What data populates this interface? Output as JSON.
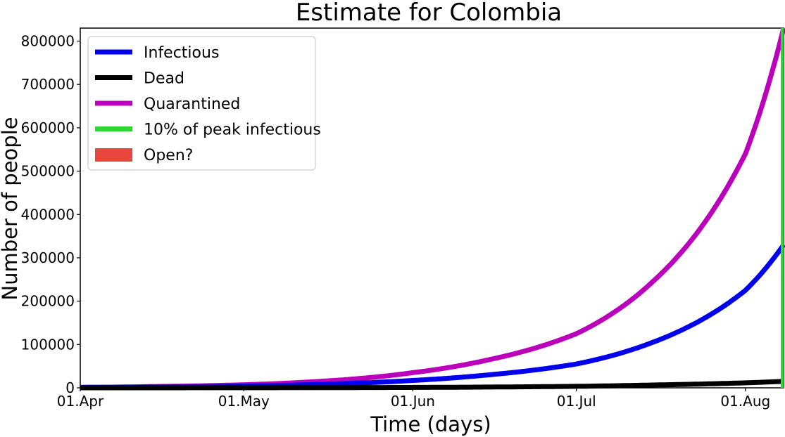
{
  "chart_data": {
    "type": "line",
    "title": "Estimate for Colombia",
    "xlabel": "Time (days)",
    "ylabel": "Number of people",
    "x_range": [
      "2020-04-01",
      "2020-08-08"
    ],
    "ylim": [
      0,
      830000
    ],
    "x_ticks": [
      {
        "label": "01.Apr",
        "date": "2020-04-01"
      },
      {
        "label": "01.May",
        "date": "2020-05-01"
      },
      {
        "label": "01.Jun",
        "date": "2020-06-01"
      },
      {
        "label": "01.Jul",
        "date": "2020-07-01"
      },
      {
        "label": "01.Aug",
        "date": "2020-08-01"
      }
    ],
    "y_ticks": [
      0,
      100000,
      200000,
      300000,
      400000,
      500000,
      600000,
      700000,
      800000
    ],
    "y_tick_labels": [
      "0",
      "100000",
      "200000",
      "300000",
      "400000",
      "500000",
      "600000",
      "700000",
      "800000"
    ],
    "x": [
      "2020-04-01",
      "2020-04-15",
      "2020-05-01",
      "2020-05-15",
      "2020-06-01",
      "2020-06-15",
      "2020-07-01",
      "2020-07-15",
      "2020-08-01",
      "2020-08-08"
    ],
    "series": [
      {
        "name": "Infectious",
        "color": "#0000ee",
        "values": [
          1000,
          2000,
          4000,
          8000,
          17000,
          30000,
          55000,
          105000,
          225000,
          330000
        ]
      },
      {
        "name": "Dead",
        "color": "#000000",
        "values": [
          0,
          50,
          150,
          400,
          900,
          1800,
          3500,
          6500,
          11500,
          15000
        ]
      },
      {
        "name": "Quarantined",
        "color": "#bb00bb",
        "values": [
          1000,
          3000,
          7000,
          15000,
          35000,
          65000,
          125000,
          245000,
          540000,
          830000
        ]
      }
    ],
    "vertical_line": {
      "name": "10% of peak infectious",
      "color": "#2fd635",
      "date": "2020-08-08"
    },
    "shaded_region": {
      "name": "Open?",
      "color": "#e8453c"
    },
    "legend": {
      "position": "top-left"
    },
    "grid": false
  }
}
